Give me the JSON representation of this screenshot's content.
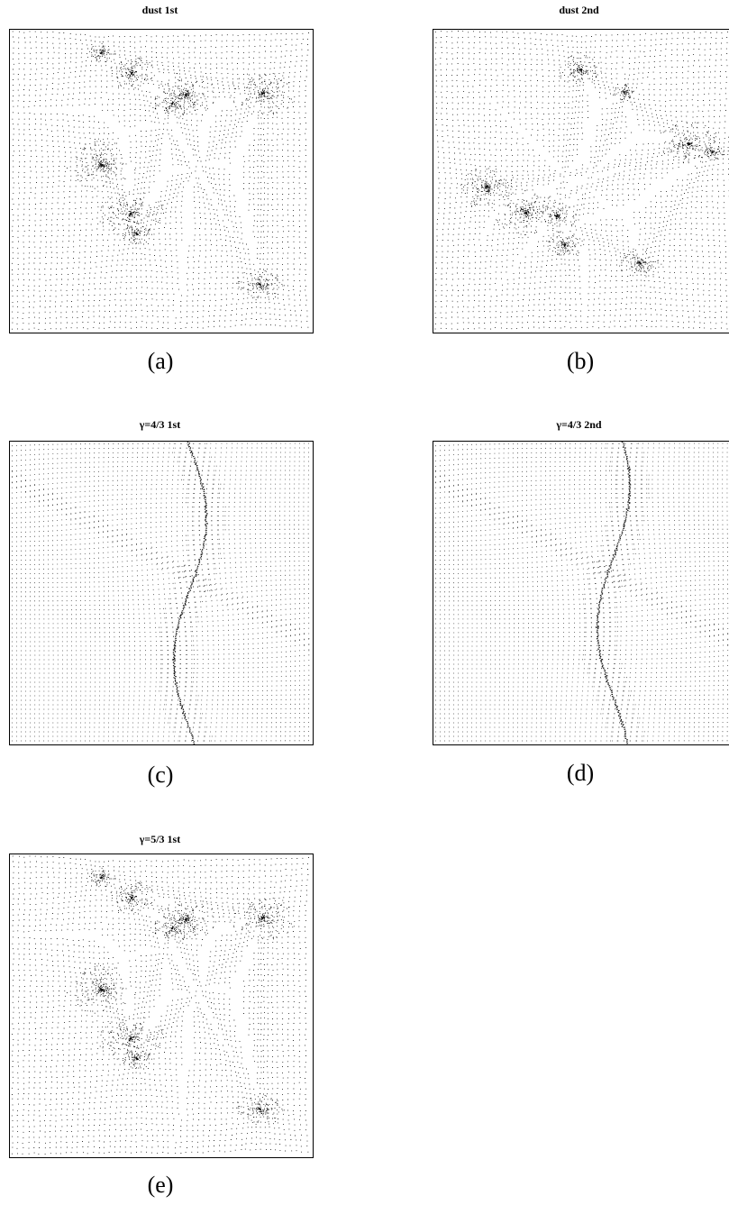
{
  "figure": {
    "panels": [
      {
        "id": "a",
        "title": "dust  1st",
        "caption": "(a)",
        "style": "dust"
      },
      {
        "id": "b",
        "title": "dust  2nd",
        "caption": "(b)",
        "style": "dust"
      },
      {
        "id": "c",
        "title": "γ=4/3  1st",
        "caption": "(c)",
        "style": "smooth"
      },
      {
        "id": "d",
        "title": "γ=4/3  2nd",
        "caption": "(d)",
        "style": "smooth"
      },
      {
        "id": "e",
        "title": "γ=5/3  1st",
        "caption": "(e)",
        "style": "dust"
      }
    ]
  },
  "colors": {
    "points": "#000000",
    "frame": "#000000",
    "background": "#ffffff"
  }
}
